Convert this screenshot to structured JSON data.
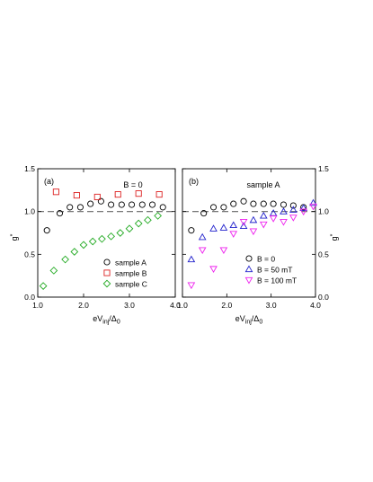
{
  "chart_data": [
    {
      "type": "scatter",
      "panel_label": "(a)",
      "annotation": "B = 0",
      "xlabel_main": "eV",
      "xlabel_sub": "inj",
      "xlabel_rest": "/Δ",
      "xlabel_sub2": "0",
      "ylabel": "g",
      "ylabel_sup": "*",
      "xlim": [
        1.0,
        4.0
      ],
      "ylim": [
        0.0,
        1.5
      ],
      "xticks": [
        1.0,
        2.0,
        3.0,
        4.0
      ],
      "xtick_labels": [
        "1.0",
        "2.0",
        "3.0",
        "4.0"
      ],
      "yticks": [
        0.0,
        0.5,
        1.0,
        1.5
      ],
      "ytick_labels": [
        "0.0",
        "0.5",
        "1.0",
        "1.5"
      ],
      "reference_line": 1.0,
      "legend_position": "bottom-right",
      "series": [
        {
          "name": "sample A",
          "marker": "circle",
          "color": "#000000",
          "x": [
            1.2,
            1.48,
            1.7,
            1.93,
            2.15,
            2.38,
            2.6,
            2.83,
            3.05,
            3.28,
            3.5,
            3.73
          ],
          "y": [
            0.78,
            0.98,
            1.05,
            1.05,
            1.09,
            1.12,
            1.08,
            1.08,
            1.08,
            1.08,
            1.08,
            1.05
          ]
        },
        {
          "name": "sample B",
          "marker": "square",
          "color": "#dd2222",
          "x": [
            1.4,
            1.85,
            2.3,
            2.75,
            3.2,
            3.65
          ],
          "y": [
            1.23,
            1.19,
            1.17,
            1.2,
            1.21,
            1.2
          ]
        },
        {
          "name": "sample C",
          "marker": "diamond",
          "color": "#22aa22",
          "x": [
            1.12,
            1.35,
            1.6,
            1.8,
            2.0,
            2.2,
            2.4,
            2.6,
            2.8,
            3.0,
            3.2,
            3.4,
            3.62
          ],
          "y": [
            0.13,
            0.31,
            0.44,
            0.53,
            0.61,
            0.65,
            0.68,
            0.71,
            0.75,
            0.8,
            0.86,
            0.9,
            0.95
          ]
        }
      ]
    },
    {
      "type": "scatter",
      "panel_label": "(b)",
      "annotation": "sample A",
      "xlabel_main": "eV",
      "xlabel_sub": "inj",
      "xlabel_rest": "/Δ",
      "xlabel_sub2": "0",
      "ylabel": "g",
      "ylabel_sup": "*",
      "xlim": [
        1.0,
        4.0
      ],
      "ylim": [
        0.0,
        1.5
      ],
      "xticks": [
        1.0,
        2.0,
        3.0,
        4.0
      ],
      "xtick_labels": [
        "1.0",
        "2.0",
        "3.0",
        "4.0"
      ],
      "yticks": [
        0.0,
        0.5,
        1.0,
        1.5
      ],
      "ytick_labels": [
        "0.0",
        "0.5",
        "1.0",
        "1.5"
      ],
      "reference_line": 1.0,
      "legend_position": "bottom-right",
      "series": [
        {
          "name": "B = 0",
          "marker": "circle",
          "color": "#000000",
          "x": [
            1.2,
            1.48,
            1.7,
            1.93,
            2.15,
            2.38,
            2.6,
            2.83,
            3.05,
            3.28,
            3.5,
            3.73
          ],
          "y": [
            0.78,
            0.98,
            1.05,
            1.05,
            1.09,
            1.12,
            1.09,
            1.09,
            1.09,
            1.08,
            1.07,
            1.05
          ]
        },
        {
          "name": "B = 50 mT",
          "marker": "triangle-up",
          "color": "#2222cc",
          "x": [
            1.2,
            1.45,
            1.7,
            1.93,
            2.15,
            2.38,
            2.6,
            2.83,
            3.05,
            3.28,
            3.5,
            3.73,
            3.95
          ],
          "y": [
            0.44,
            0.7,
            0.8,
            0.81,
            0.84,
            0.83,
            0.9,
            0.95,
            0.98,
            1.0,
            1.02,
            1.04,
            1.1
          ]
        },
        {
          "name": "B = 100 mT",
          "marker": "triangle-down",
          "color": "#ee22ee",
          "x": [
            1.2,
            1.45,
            1.7,
            1.93,
            2.15,
            2.38,
            2.6,
            2.83,
            3.05,
            3.28,
            3.5,
            3.73,
            3.95
          ],
          "y": [
            0.14,
            0.55,
            0.33,
            0.55,
            0.74,
            0.88,
            0.77,
            0.85,
            0.92,
            0.88,
            0.93,
            1.0,
            1.06
          ]
        }
      ]
    }
  ]
}
